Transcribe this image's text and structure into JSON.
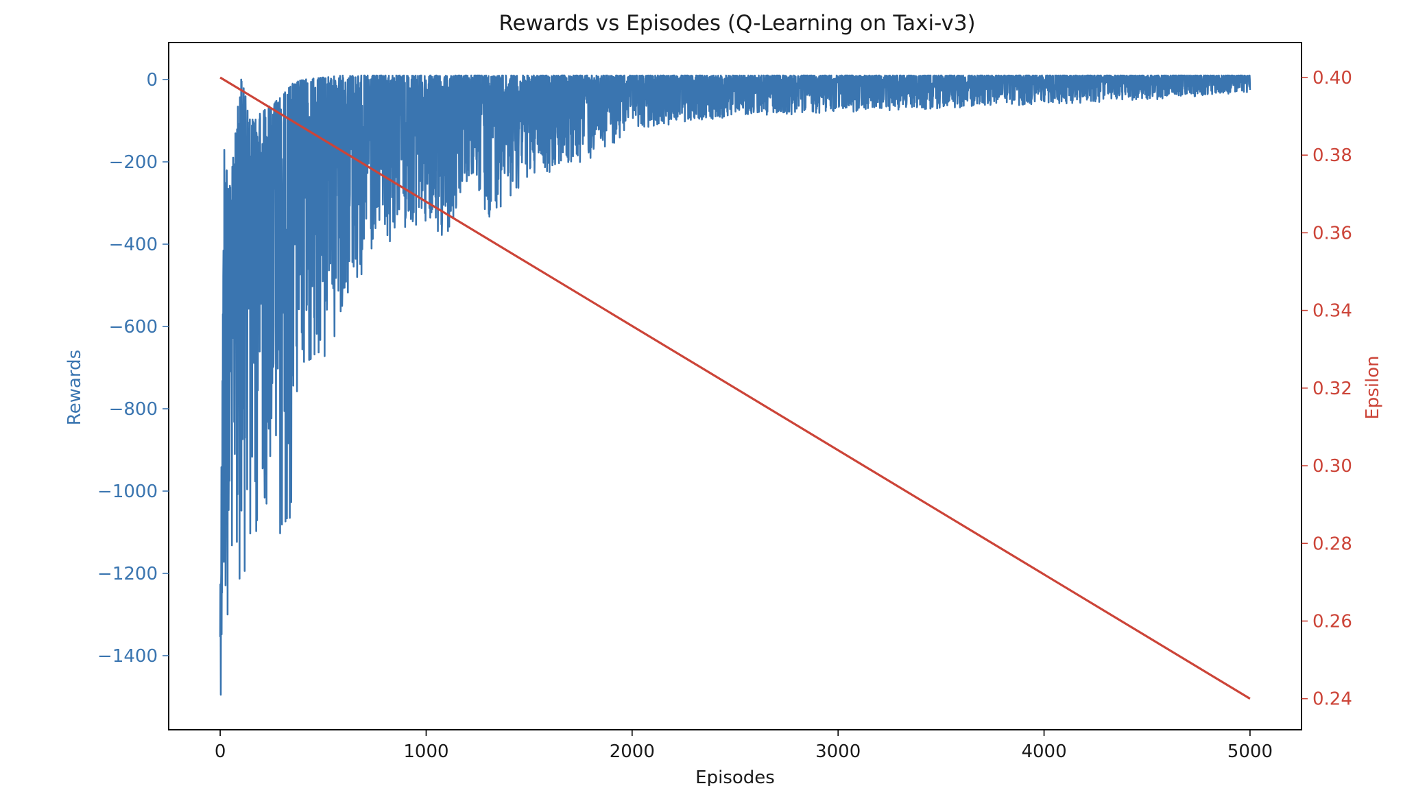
{
  "chart_data": {
    "type": "line",
    "title": "Rewards vs Episodes (Q-Learning on Taxi-v3)",
    "xlabel": "Episodes",
    "xlim": [
      -250,
      5250
    ],
    "x_ticks": [
      0,
      1000,
      2000,
      3000,
      4000,
      5000
    ],
    "x_tick_labels": [
      "0",
      "1000",
      "2000",
      "3000",
      "4000",
      "5000"
    ],
    "grid": false,
    "legend": "none",
    "left_axis": {
      "label": "Rewards",
      "color": "#3a75b0",
      "ylim": [
        -1580,
        90
      ],
      "ticks": [
        0,
        -200,
        -400,
        -600,
        -800,
        -1000,
        -1200,
        -1400
      ],
      "tick_labels": [
        "0",
        "−200",
        "−400",
        "−600",
        "−800",
        "−1000",
        "−1200",
        "−1400"
      ]
    },
    "right_axis": {
      "label": "Epsilon",
      "color": "#cc4438",
      "ylim": [
        0.232,
        0.409
      ],
      "ticks": [
        0.24,
        0.26,
        0.28,
        0.3,
        0.32,
        0.34,
        0.36,
        0.38,
        0.4
      ],
      "tick_labels": [
        "0.24",
        "0.26",
        "0.28",
        "0.30",
        "0.32",
        "0.34",
        "0.36",
        "0.38",
        "0.40"
      ]
    },
    "series": [
      {
        "axis": "left",
        "color": "#3a75b0",
        "episodes": [
          0,
          5000
        ],
        "approx_envelope": {
          "x": [
            0,
            20,
            50,
            100,
            150,
            200,
            250,
            300,
            350,
            400,
            500,
            600,
            700,
            800,
            900,
            1000,
            1100,
            1200,
            1300,
            1500,
            1800,
            2000,
            2500,
            3000,
            3500,
            4000,
            4500,
            5000
          ],
          "upper": [
            -1260,
            -160,
            -260,
            10,
            -100,
            -80,
            -60,
            -40,
            -10,
            0,
            5,
            10,
            10,
            10,
            10,
            10,
            10,
            10,
            10,
            10,
            10,
            10,
            10,
            10,
            10,
            10,
            10,
            10
          ],
          "lower": [
            -1500,
            -1490,
            -1260,
            -1220,
            -1170,
            -1100,
            -1000,
            -1150,
            -1060,
            -750,
            -720,
            -550,
            -500,
            -430,
            -360,
            -390,
            -410,
            -260,
            -340,
            -240,
            -200,
            -120,
            -90,
            -80,
            -70,
            -60,
            -50,
            -30
          ]
        }
      },
      {
        "axis": "right",
        "color": "#cc4438",
        "x": [
          0,
          5000
        ],
        "y": [
          0.4,
          0.24
        ]
      }
    ]
  }
}
